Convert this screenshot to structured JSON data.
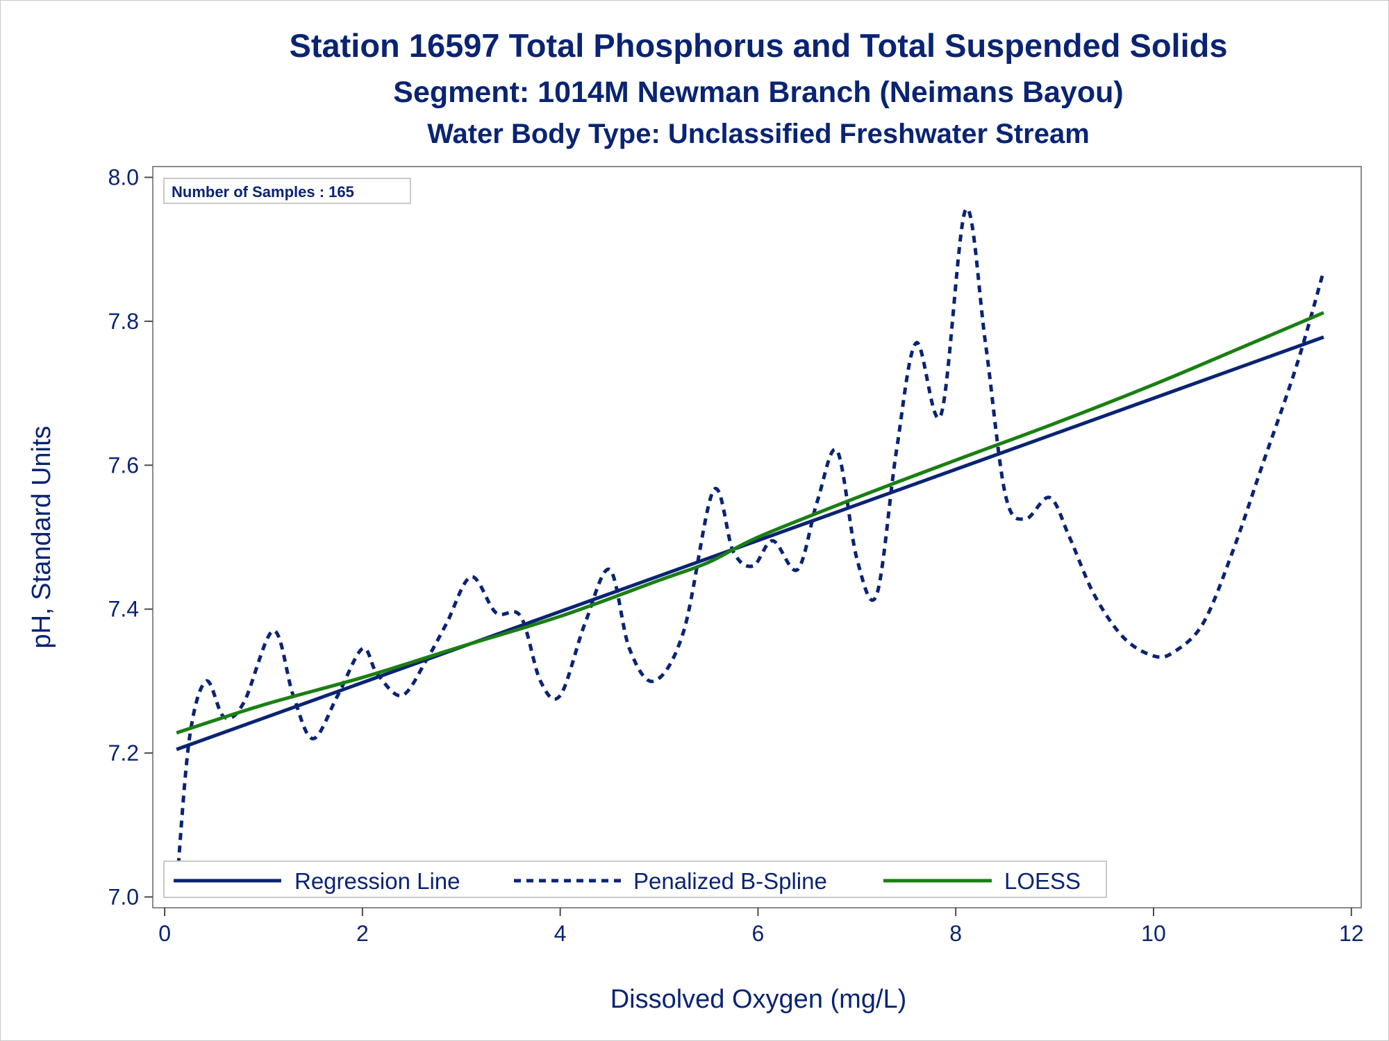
{
  "chart_data": {
    "type": "line",
    "title": "Station 16597  Total Phosphorus and Total Suspended Solids",
    "subtitle": "Segment: 1014M  Newman Branch (Neimans Bayou)",
    "subtitle2": "Water Body Type: Unclassified Freshwater Stream",
    "xlabel": "Dissolved Oxygen (mg/L)",
    "ylabel": "pH, Standard Units",
    "xlim": [
      -0.12,
      12.1
    ],
    "ylim": [
      6.985,
      8.015
    ],
    "x_ticks": [
      0,
      2,
      4,
      6,
      8,
      10,
      12
    ],
    "x_tick_labels": [
      "0",
      "2",
      "4",
      "6",
      "8",
      "10",
      "12"
    ],
    "y_ticks": [
      7.0,
      7.2,
      7.4,
      7.6,
      7.8,
      8.0
    ],
    "y_tick_labels": [
      "7.0",
      "7.2",
      "7.4",
      "7.6",
      "7.8",
      "8.0"
    ],
    "grid": false,
    "legend_position": "bottom-left",
    "annotation": "Number of Samples : 165",
    "series": [
      {
        "name": "Regression Line",
        "style": "solid",
        "color": "#0a2473",
        "x": [
          0.12,
          11.72
        ],
        "y": [
          7.205,
          7.778
        ]
      },
      {
        "name": "Penalized B-Spline",
        "style": "dashed",
        "color": "#0a2473",
        "x": [
          0.12,
          0.25,
          0.42,
          0.6,
          0.8,
          1.1,
          1.3,
          1.5,
          1.75,
          2.0,
          2.15,
          2.4,
          2.65,
          2.85,
          3.1,
          3.35,
          3.6,
          3.8,
          4.0,
          4.25,
          4.5,
          4.7,
          4.95,
          5.25,
          5.55,
          5.75,
          5.95,
          6.15,
          6.4,
          6.6,
          6.8,
          7.0,
          7.2,
          7.4,
          7.6,
          7.85,
          8.1,
          8.3,
          8.5,
          8.7,
          8.95,
          9.15,
          9.4,
          9.7,
          10.0,
          10.2,
          10.5,
          10.8,
          11.1,
          11.45,
          11.72
        ],
        "y": [
          7.01,
          7.22,
          7.3,
          7.25,
          7.27,
          7.37,
          7.28,
          7.22,
          7.28,
          7.345,
          7.31,
          7.28,
          7.33,
          7.38,
          7.445,
          7.395,
          7.39,
          7.3,
          7.28,
          7.38,
          7.455,
          7.345,
          7.3,
          7.37,
          7.565,
          7.48,
          7.46,
          7.495,
          7.455,
          7.55,
          7.62,
          7.47,
          7.42,
          7.62,
          7.77,
          7.67,
          7.955,
          7.77,
          7.56,
          7.525,
          7.555,
          7.5,
          7.42,
          7.36,
          7.335,
          7.34,
          7.38,
          7.48,
          7.6,
          7.74,
          7.87
        ]
      },
      {
        "name": "LOESS",
        "style": "solid",
        "color": "#1a7f12",
        "x": [
          0.12,
          1.0,
          2.0,
          3.0,
          4.0,
          5.0,
          5.5,
          6.0,
          7.0,
          8.0,
          9.0,
          10.0,
          11.0,
          11.72
        ],
        "y": [
          7.228,
          7.267,
          7.305,
          7.348,
          7.39,
          7.44,
          7.465,
          7.5,
          7.555,
          7.607,
          7.658,
          7.712,
          7.77,
          7.812
        ]
      }
    ]
  }
}
